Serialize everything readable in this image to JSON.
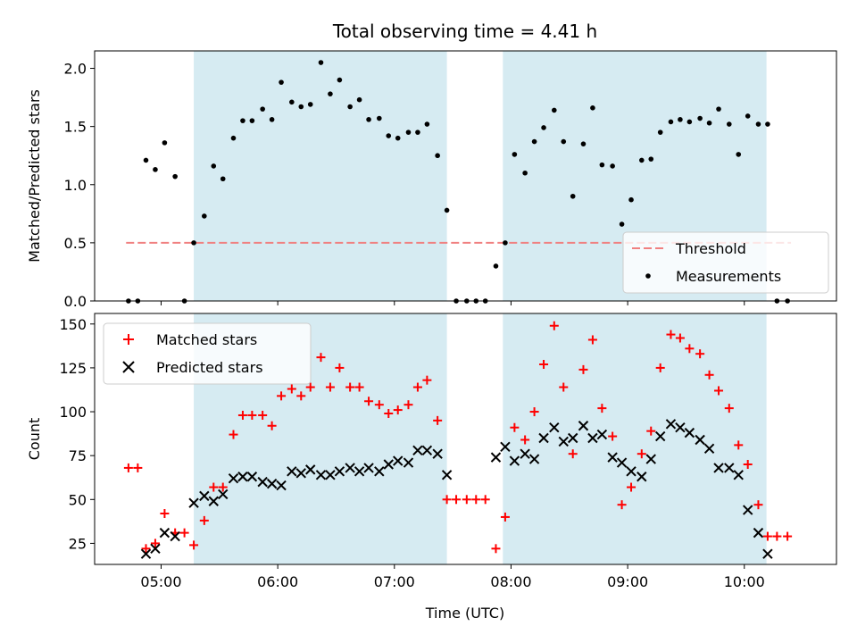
{
  "chart_data": [
    {
      "type": "scatter",
      "title": "Total observing time = 4.41 h",
      "xlabel": "",
      "ylabel": "Matched/Predicted stars",
      "x_unit": "hours UTC",
      "xlim": [
        4.43,
        10.79
      ],
      "ylim": [
        0,
        2.15
      ],
      "y_ticks": [
        0.0,
        0.5,
        1.0,
        1.5,
        2.0
      ],
      "y_tick_labels": [
        "0.0",
        "0.5",
        "1.0",
        "1.5",
        "2.0"
      ],
      "x_ticks": [
        5,
        6,
        7,
        8,
        9,
        10
      ],
      "x_tick_labels": [
        "",
        "",
        "",
        "",
        "",
        ""
      ],
      "observing_windows": [
        [
          5.28,
          7.45
        ],
        [
          7.93,
          10.19
        ]
      ],
      "threshold": {
        "name": "Threshold",
        "value": 0.5,
        "x_range": [
          4.7,
          10.4
        ],
        "color": "#f08080"
      },
      "series": [
        {
          "name": "Measurements",
          "color": "#000000",
          "marker": "dot",
          "points": [
            [
              4.72,
              0.0
            ],
            [
              4.8,
              0.0
            ],
            [
              4.87,
              1.21
            ],
            [
              4.95,
              1.13
            ],
            [
              5.03,
              1.36
            ],
            [
              5.12,
              1.07
            ],
            [
              5.2,
              0.0
            ],
            [
              5.28,
              0.5
            ],
            [
              5.37,
              0.73
            ],
            [
              5.45,
              1.16
            ],
            [
              5.53,
              1.05
            ],
            [
              5.62,
              1.4
            ],
            [
              5.7,
              1.55
            ],
            [
              5.78,
              1.55
            ],
            [
              5.87,
              1.65
            ],
            [
              5.95,
              1.56
            ],
            [
              6.03,
              1.88
            ],
            [
              6.12,
              1.71
            ],
            [
              6.2,
              1.67
            ],
            [
              6.28,
              1.69
            ],
            [
              6.37,
              2.05
            ],
            [
              6.45,
              1.78
            ],
            [
              6.53,
              1.9
            ],
            [
              6.62,
              1.67
            ],
            [
              6.7,
              1.73
            ],
            [
              6.78,
              1.56
            ],
            [
              6.87,
              1.57
            ],
            [
              6.95,
              1.42
            ],
            [
              7.03,
              1.4
            ],
            [
              7.12,
              1.45
            ],
            [
              7.2,
              1.45
            ],
            [
              7.28,
              1.52
            ],
            [
              7.37,
              1.25
            ],
            [
              7.45,
              0.78
            ],
            [
              7.53,
              0.0
            ],
            [
              7.62,
              0.0
            ],
            [
              7.7,
              0.0
            ],
            [
              7.78,
              0.0
            ],
            [
              7.87,
              0.3
            ],
            [
              7.95,
              0.5
            ],
            [
              8.03,
              1.26
            ],
            [
              8.12,
              1.1
            ],
            [
              8.2,
              1.37
            ],
            [
              8.28,
              1.49
            ],
            [
              8.37,
              1.64
            ],
            [
              8.45,
              1.37
            ],
            [
              8.53,
              0.9
            ],
            [
              8.62,
              1.35
            ],
            [
              8.7,
              1.66
            ],
            [
              8.78,
              1.17
            ],
            [
              8.87,
              1.16
            ],
            [
              8.95,
              0.66
            ],
            [
              9.03,
              0.87
            ],
            [
              9.12,
              1.21
            ],
            [
              9.2,
              1.22
            ],
            [
              9.28,
              1.45
            ],
            [
              9.37,
              1.54
            ],
            [
              9.45,
              1.56
            ],
            [
              9.53,
              1.54
            ],
            [
              9.62,
              1.57
            ],
            [
              9.7,
              1.53
            ],
            [
              9.78,
              1.65
            ],
            [
              9.87,
              1.52
            ],
            [
              9.95,
              1.26
            ],
            [
              10.03,
              1.59
            ],
            [
              10.12,
              1.52
            ],
            [
              10.2,
              1.52
            ],
            [
              10.28,
              0.0
            ],
            [
              10.37,
              0.0
            ]
          ]
        }
      ],
      "legend": {
        "placement": "lower right",
        "entries": [
          "Threshold",
          "Measurements"
        ]
      },
      "grid": false
    },
    {
      "type": "scatter",
      "title": "",
      "xlabel": "Time (UTC)",
      "ylabel": "Count",
      "x_unit": "hours UTC",
      "xlim": [
        4.43,
        10.79
      ],
      "ylim": [
        13,
        156
      ],
      "y_ticks": [
        25,
        50,
        75,
        100,
        125,
        150
      ],
      "y_tick_labels": [
        "25",
        "50",
        "75",
        "100",
        "125",
        "150"
      ],
      "x_ticks": [
        5,
        6,
        7,
        8,
        9,
        10
      ],
      "x_tick_labels": [
        "05:00",
        "06:00",
        "07:00",
        "08:00",
        "09:00",
        "10:00"
      ],
      "observing_windows": [
        [
          5.28,
          7.45
        ],
        [
          7.93,
          10.19
        ]
      ],
      "series": [
        {
          "name": "Matched stars",
          "color": "#ff0000",
          "marker": "plus",
          "points": [
            [
              4.72,
              68
            ],
            [
              4.8,
              68
            ],
            [
              4.87,
              22
            ],
            [
              4.95,
              25
            ],
            [
              5.03,
              42
            ],
            [
              5.12,
              31
            ],
            [
              5.2,
              31
            ],
            [
              5.28,
              24
            ],
            [
              5.37,
              38
            ],
            [
              5.45,
              57
            ],
            [
              5.53,
              57
            ],
            [
              5.62,
              87
            ],
            [
              5.7,
              98
            ],
            [
              5.78,
              98
            ],
            [
              5.87,
              98
            ],
            [
              5.95,
              92
            ],
            [
              6.03,
              109
            ],
            [
              6.12,
              113
            ],
            [
              6.2,
              109
            ],
            [
              6.28,
              114
            ],
            [
              6.37,
              131
            ],
            [
              6.45,
              114
            ],
            [
              6.53,
              125
            ],
            [
              6.62,
              114
            ],
            [
              6.7,
              114
            ],
            [
              6.78,
              106
            ],
            [
              6.87,
              104
            ],
            [
              6.95,
              99
            ],
            [
              7.03,
              101
            ],
            [
              7.12,
              104
            ],
            [
              7.2,
              114
            ],
            [
              7.28,
              118
            ],
            [
              7.37,
              95
            ],
            [
              7.45,
              50
            ],
            [
              7.53,
              50
            ],
            [
              7.62,
              50
            ],
            [
              7.7,
              50
            ],
            [
              7.78,
              50
            ],
            [
              7.87,
              22
            ],
            [
              7.95,
              40
            ],
            [
              8.03,
              91
            ],
            [
              8.12,
              84
            ],
            [
              8.2,
              100
            ],
            [
              8.28,
              127
            ],
            [
              8.37,
              149
            ],
            [
              8.45,
              114
            ],
            [
              8.53,
              76
            ],
            [
              8.62,
              124
            ],
            [
              8.7,
              141
            ],
            [
              8.78,
              102
            ],
            [
              8.87,
              86
            ],
            [
              8.95,
              47
            ],
            [
              9.03,
              57
            ],
            [
              9.12,
              76
            ],
            [
              9.2,
              89
            ],
            [
              9.28,
              125
            ],
            [
              9.37,
              144
            ],
            [
              9.45,
              142
            ],
            [
              9.53,
              136
            ],
            [
              9.62,
              133
            ],
            [
              9.7,
              121
            ],
            [
              9.78,
              112
            ],
            [
              9.87,
              102
            ],
            [
              9.95,
              81
            ],
            [
              10.03,
              70
            ],
            [
              10.12,
              47
            ],
            [
              10.2,
              29
            ],
            [
              10.28,
              29
            ],
            [
              10.37,
              29
            ]
          ]
        },
        {
          "name": "Predicted stars",
          "color": "#000000",
          "marker": "x",
          "points": [
            [
              4.87,
              19
            ],
            [
              4.95,
              22
            ],
            [
              5.03,
              31
            ],
            [
              5.12,
              29
            ],
            [
              5.28,
              48
            ],
            [
              5.37,
              52
            ],
            [
              5.45,
              49
            ],
            [
              5.53,
              53
            ],
            [
              5.62,
              62
            ],
            [
              5.7,
              63
            ],
            [
              5.78,
              63
            ],
            [
              5.87,
              60
            ],
            [
              5.95,
              59
            ],
            [
              6.03,
              58
            ],
            [
              6.12,
              66
            ],
            [
              6.2,
              65
            ],
            [
              6.28,
              67
            ],
            [
              6.37,
              64
            ],
            [
              6.45,
              64
            ],
            [
              6.53,
              66
            ],
            [
              6.62,
              68
            ],
            [
              6.7,
              66
            ],
            [
              6.78,
              68
            ],
            [
              6.87,
              66
            ],
            [
              6.95,
              70
            ],
            [
              7.03,
              72
            ],
            [
              7.12,
              71
            ],
            [
              7.2,
              78
            ],
            [
              7.28,
              78
            ],
            [
              7.37,
              76
            ],
            [
              7.45,
              64
            ],
            [
              7.87,
              74
            ],
            [
              7.95,
              80
            ],
            [
              8.03,
              72
            ],
            [
              8.12,
              76
            ],
            [
              8.2,
              73
            ],
            [
              8.28,
              85
            ],
            [
              8.37,
              91
            ],
            [
              8.45,
              83
            ],
            [
              8.53,
              85
            ],
            [
              8.62,
              92
            ],
            [
              8.7,
              85
            ],
            [
              8.78,
              87
            ],
            [
              8.87,
              74
            ],
            [
              8.95,
              71
            ],
            [
              9.03,
              66
            ],
            [
              9.12,
              63
            ],
            [
              9.2,
              73
            ],
            [
              9.28,
              86
            ],
            [
              9.37,
              93
            ],
            [
              9.45,
              91
            ],
            [
              9.53,
              88
            ],
            [
              9.62,
              84
            ],
            [
              9.7,
              79
            ],
            [
              9.78,
              68
            ],
            [
              9.87,
              68
            ],
            [
              9.95,
              64
            ],
            [
              10.03,
              44
            ],
            [
              10.12,
              31
            ],
            [
              10.2,
              19
            ]
          ]
        }
      ],
      "legend": {
        "placement": "upper left",
        "entries": [
          "Matched stars",
          "Predicted stars"
        ]
      },
      "grid": false
    }
  ],
  "colors": {
    "window_fill": "#add8e6",
    "window_alpha": 0.5,
    "legend_frame": "#cccccc"
  }
}
